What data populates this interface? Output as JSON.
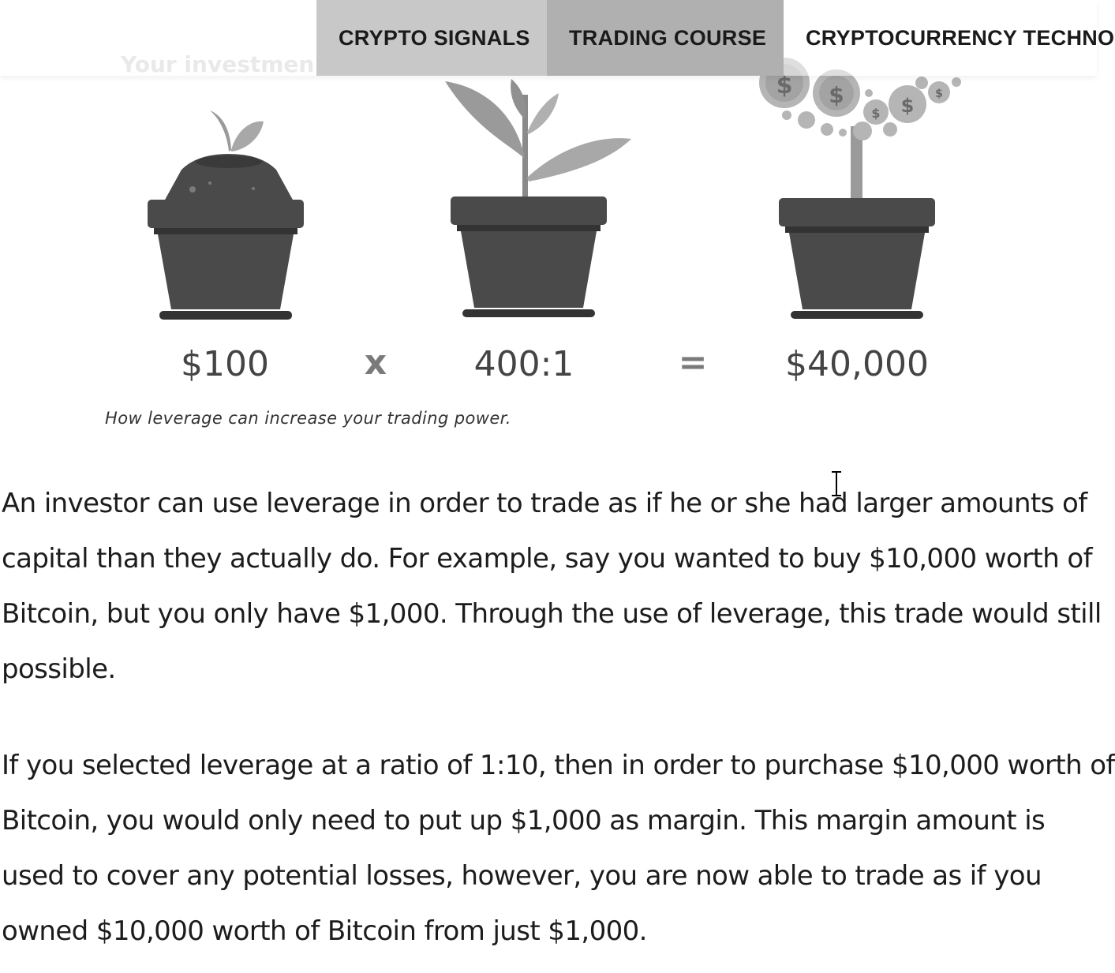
{
  "nav": {
    "items": [
      {
        "label": "CRYPTO SIGNALS"
      },
      {
        "label": "TRADING COURSE"
      },
      {
        "label": "CRYPTOCURRENCY TECHNO"
      }
    ]
  },
  "figure": {
    "faded_title": "Your investmen",
    "equation": {
      "investment": "$100",
      "times": "x",
      "leverage": "400:1",
      "equals": "=",
      "result": "$40,000"
    },
    "caption": "How leverage can increase your trading power."
  },
  "article": {
    "paragraphs": [
      {
        "lines": [
          "An investor can use leverage in order to trade as if he or she had larger amounts of",
          "capital than they actually do. For example, say you wanted to buy $10,000 worth of",
          "Bitcoin, but you only have $1,000. Through the use of leverage, this trade would still",
          "possible."
        ]
      },
      {
        "lines": [
          "If you selected leverage at a ratio of 1:10, then in order to purchase $10,000 worth of",
          "Bitcoin, you would only need to put up $1,000 as margin. This margin amount is",
          "used to cover any potential losses, however, you are now able to trade as if you",
          "owned $10,000 worth of Bitcoin from just $1,000."
        ]
      }
    ]
  },
  "colors": {
    "nav_active": "#b0b0b0",
    "nav_item": "#c8c8c8",
    "pot": "#4a4a4a",
    "leaf": "#a8a8a8"
  }
}
